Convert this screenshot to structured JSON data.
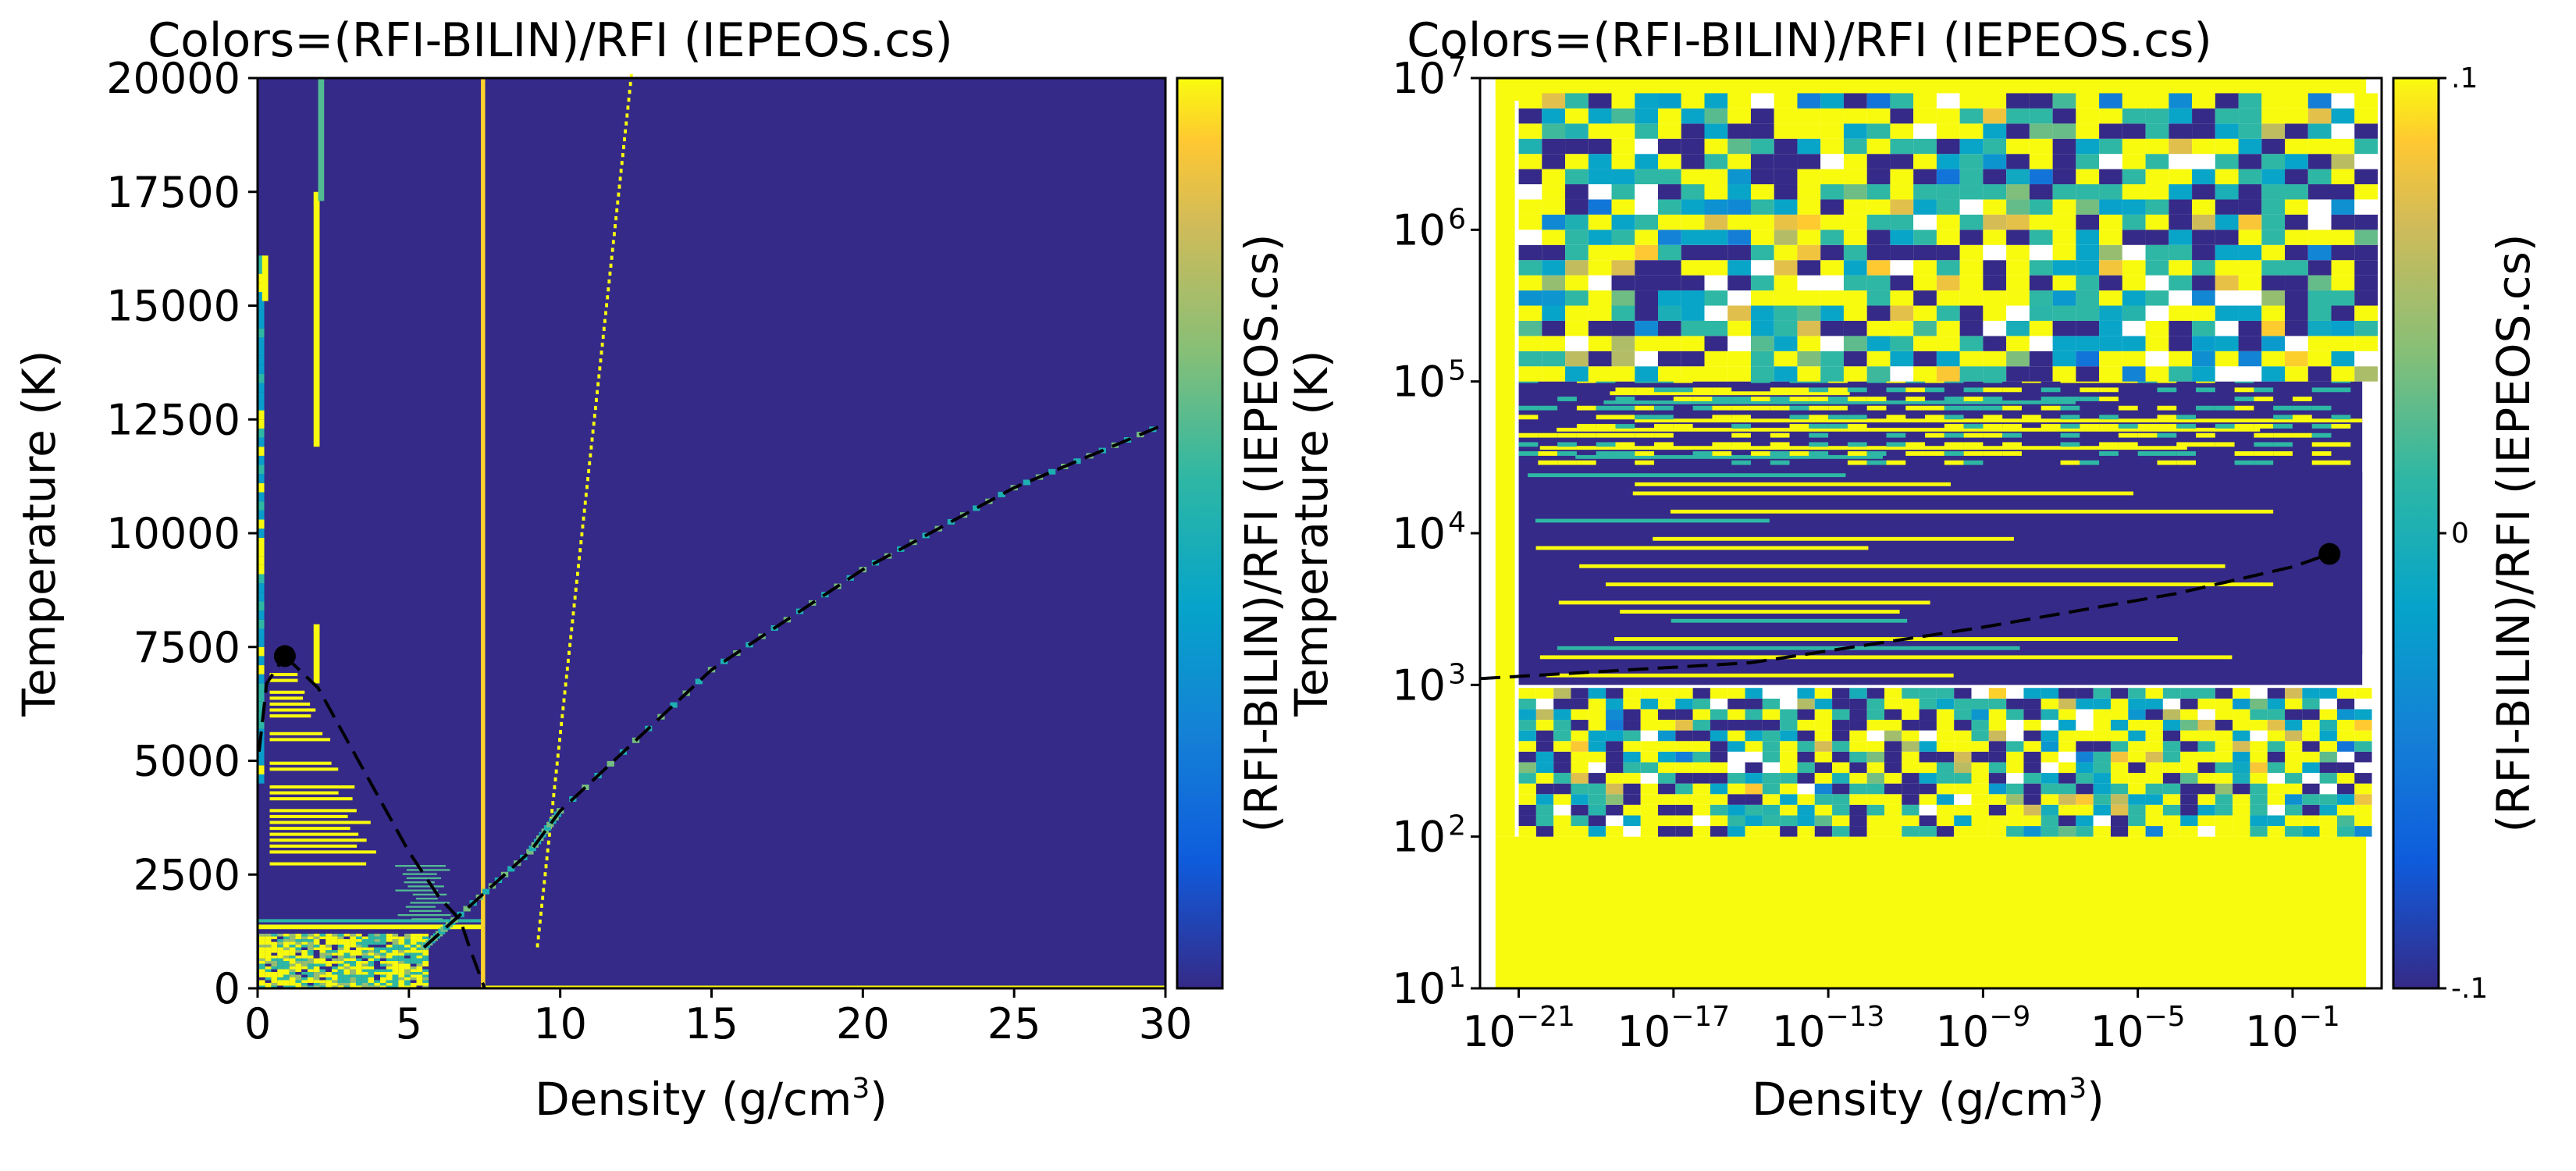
{
  "chart_data": [
    {
      "type": "heatmap",
      "title": "Colors=(RFI-BILIN)/RFI (IEPEOS.cs)",
      "xlabel": "Density (g/cm",
      "xlabel_sup": "3",
      "xlabel_close": ")",
      "ylabel": "Temperature (K)",
      "xscale": "linear",
      "yscale": "linear",
      "xlim": [
        0,
        30
      ],
      "ylim": [
        0,
        20000
      ],
      "xticks": [
        0,
        5,
        10,
        15,
        20,
        25,
        30
      ],
      "xtick_labels": [
        "0",
        "5",
        "10",
        "15",
        "20",
        "25",
        "30"
      ],
      "yticks": [
        0,
        2500,
        5000,
        7500,
        10000,
        12500,
        15000,
        17500,
        20000
      ],
      "ytick_labels": [
        "0",
        "2500",
        "5000",
        "7500",
        "10000",
        "12500",
        "15000",
        "17500",
        "20000"
      ],
      "colorbar": {
        "label": "(RFI-BILIN)/RFI (IEPEOS.cs)",
        "range": [
          -0.1,
          0.1
        ],
        "colormap": "parula",
        "tick_labels": []
      },
      "critical_point": {
        "x": 0.9,
        "y": 7300
      },
      "phase_boundary": {
        "vapor_branch": [
          [
            0.05,
            5200
          ],
          [
            0.3,
            6700
          ],
          [
            0.9,
            7300
          ]
        ],
        "liquid_branch": [
          [
            0.9,
            7300
          ],
          [
            2.0,
            6600
          ],
          [
            3.5,
            4800
          ],
          [
            5.0,
            3000
          ],
          [
            6.0,
            2000
          ],
          [
            6.7,
            1500
          ],
          [
            7.0,
            900
          ],
          [
            7.5,
            0
          ]
        ],
        "melt_curve": [
          [
            5.5,
            900
          ],
          [
            6.5,
            1500
          ],
          [
            9.0,
            3000
          ],
          [
            10.0,
            3900
          ],
          [
            15.0,
            7000
          ],
          [
            20.0,
            9200
          ],
          [
            25.0,
            11000
          ],
          [
            30.0,
            12400
          ]
        ]
      },
      "background_value": -0.1
    },
    {
      "type": "heatmap",
      "title": "Colors=(RFI-BILIN)/RFI (IEPEOS.cs)",
      "xlabel": "Density (g/cm",
      "xlabel_sup": "3",
      "xlabel_close": ")",
      "ylabel": "Temperature (K)",
      "xscale": "log",
      "yscale": "log",
      "xlim": [
        1e-22,
        20
      ],
      "ylim": [
        10,
        10000000.0
      ],
      "xtick_exponents": [
        "−21",
        "−17",
        "−13",
        "−9",
        "−5",
        "−1"
      ],
      "xticks": [
        1e-21,
        1e-17,
        1e-13,
        1e-09,
        1e-05,
        0.1
      ],
      "ytick_exponents": [
        "1",
        "2",
        "3",
        "4",
        "5",
        "6",
        "7"
      ],
      "yticks": [
        10,
        100,
        1000,
        10000,
        100000,
        1000000,
        10000000
      ],
      "tick_base": "10",
      "colorbar": {
        "label": "(RFI-BILIN)/RFI (IEPEOS.cs)",
        "range": [
          -0.1,
          0.1
        ],
        "colormap": "parula",
        "tick_labels": [
          "-.1",
          "0",
          ".1"
        ]
      },
      "critical_point": {
        "x": 0.9,
        "y": 7300
      },
      "phase_boundary": [
        [
          1e-22,
          1100
        ],
        [
          1e-15,
          1400
        ],
        [
          1e-09,
          2400
        ],
        [
          0.0001,
          4000
        ],
        [
          0.1,
          6000
        ],
        [
          0.9,
          7300
        ]
      ],
      "background_value": -0.1
    }
  ]
}
